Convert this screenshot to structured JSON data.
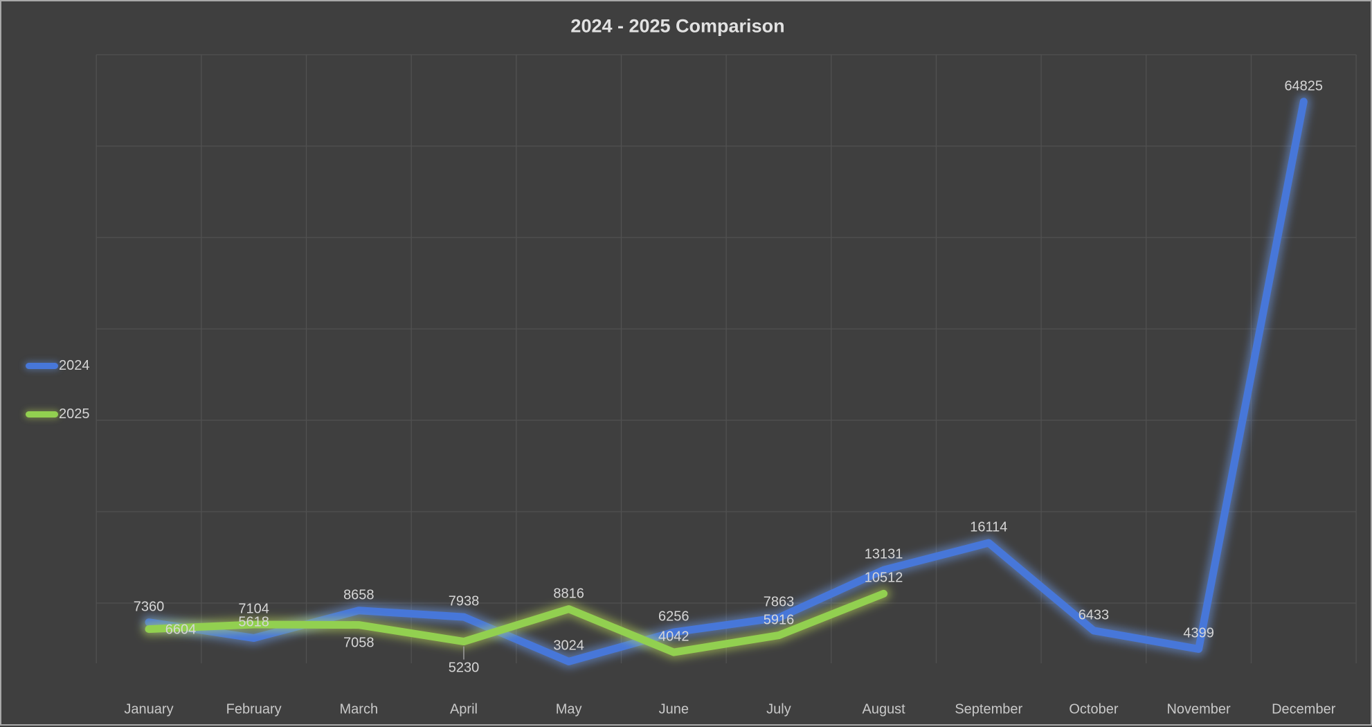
{
  "chart": {
    "title": "2024 - 2025 Comparison"
  },
  "legend": {
    "items": [
      {
        "label": "2024",
        "color": "#4777D9",
        "glow_color": "#6FA0F5"
      },
      {
        "label": "2025",
        "color": "#92D050",
        "glow_color": "#C3E05A"
      }
    ]
  },
  "chart_data": {
    "type": "line",
    "title": "2024 - 2025 Comparison",
    "categories": [
      "January",
      "February",
      "March",
      "April",
      "May",
      "June",
      "July",
      "August",
      "September",
      "October",
      "November",
      "December"
    ],
    "series": [
      {
        "name": "2024",
        "color": "#4777D9",
        "glow_color": "#6FA0F5",
        "values": [
          7360,
          5618,
          8658,
          7938,
          3024,
          6256,
          7863,
          13131,
          16114,
          6433,
          4399,
          64825
        ]
      },
      {
        "name": "2025",
        "color": "#92D050",
        "glow_color": "#C3E05A",
        "values": [
          6604,
          7104,
          7058,
          5230,
          8816,
          4042,
          5916,
          10512
        ]
      }
    ],
    "xlabel": "",
    "ylabel": "",
    "ylim": [
      0,
      70000
    ],
    "gridline_step": 10000,
    "grid": true,
    "legend_position": "left",
    "data_labels": true
  },
  "colors": {
    "background": "#3F3F3F",
    "gridline": "#515151",
    "data_label": "#D6D6D6",
    "axis_label": "#C9C9C9",
    "title": "#E2E2E2",
    "border": "#A9A9A9",
    "leader_line": "#9E9E9E"
  }
}
